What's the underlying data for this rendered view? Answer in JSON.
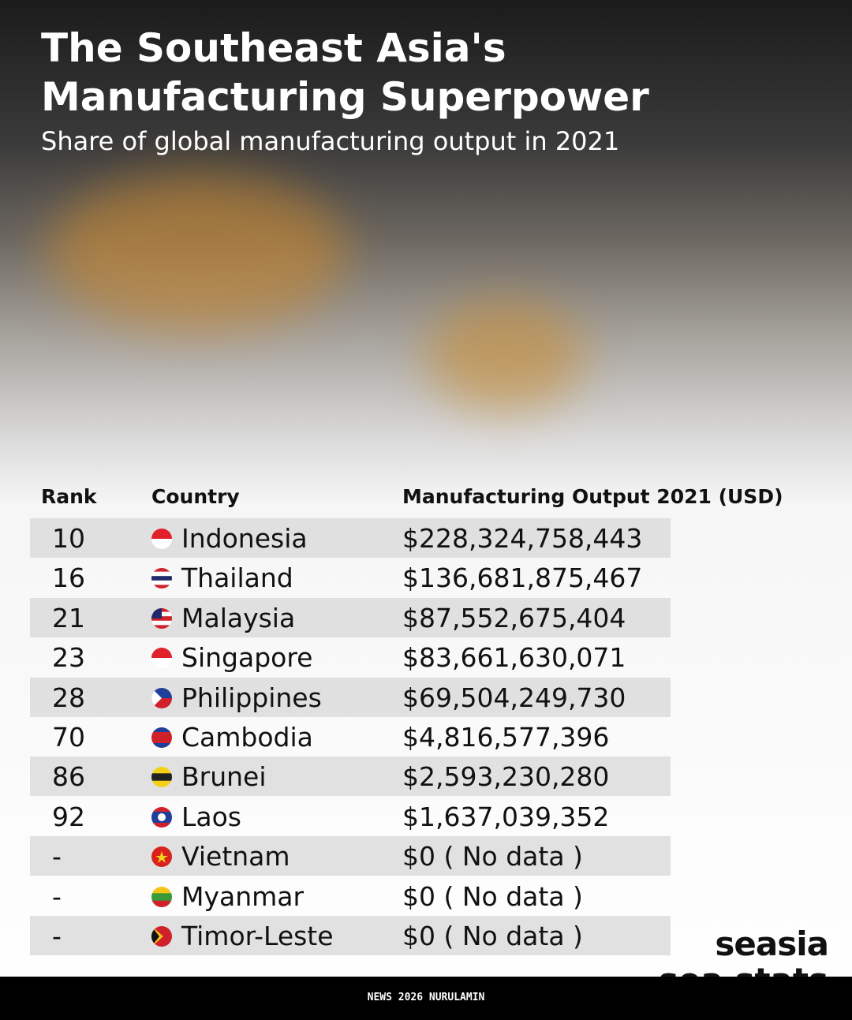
{
  "header": {
    "title_lines": [
      "The Southeast Asia's",
      "Manufacturing Superpower"
    ],
    "subtitle": "Share of global manufacturing output in 2021"
  },
  "table": {
    "columns": [
      "Rank",
      "Country",
      "Manufacturing Output 2021 (USD)"
    ],
    "rows": [
      [
        "10",
        "Indonesia",
        "$228,324,758,443"
      ],
      [
        "16",
        "Thailand",
        "$136,681,875,467"
      ],
      [
        "21",
        "Malaysia",
        "$87,552,675,404"
      ],
      [
        "23",
        "Singapore",
        "$83,661,630,071"
      ],
      [
        "28",
        "Philippines",
        "$69,504,249,730"
      ],
      [
        "70",
        "Cambodia",
        "$4,816,577,396"
      ],
      [
        "86",
        "Brunei",
        "$2,593,230,280"
      ],
      [
        "92",
        "Laos",
        "$1,637,039,352"
      ],
      [
        "-",
        "Vietnam",
        "$0 ( No data  )"
      ],
      [
        "-",
        "Myanmar",
        "$0 ( No data )"
      ],
      [
        "-",
        "Timor-Leste",
        "$0 ( No data )"
      ]
    ]
  },
  "brand": {
    "name": "seasia",
    "sub": "sea stats"
  },
  "footer": {
    "text": "NEWS 2026 NURULAMIN"
  }
}
